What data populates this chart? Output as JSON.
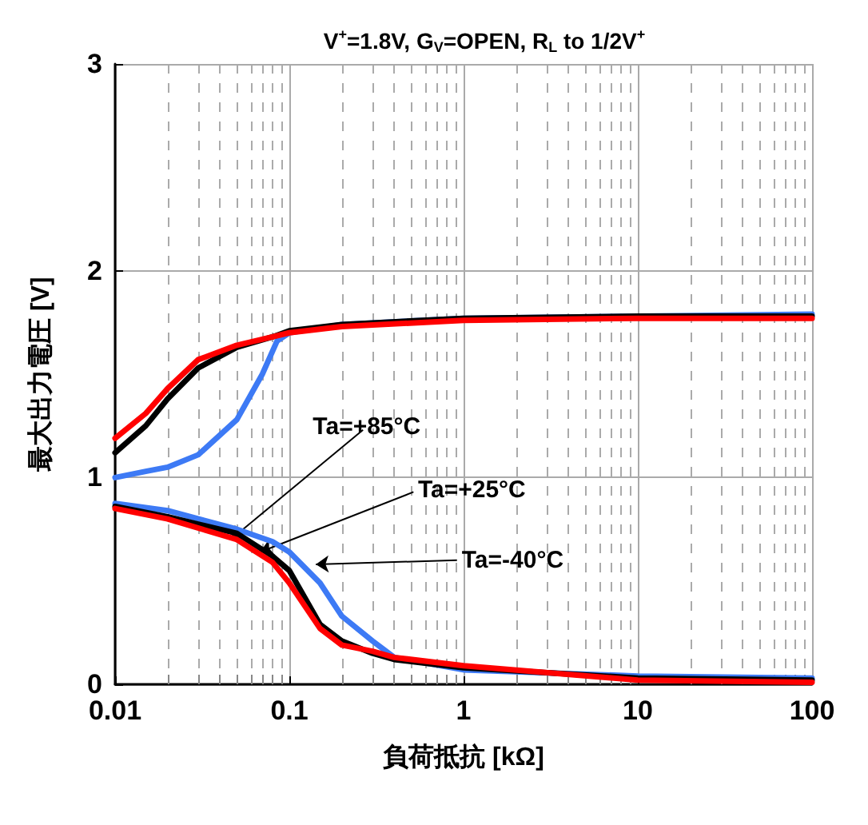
{
  "chart_data": {
    "type": "line",
    "title": "V$^{+}$=1.8V, G$_{V}$=OPEN, R$_{L}$ to 1/2V$^{+}$",
    "xlabel": "負荷抵抗 [kΩ]",
    "ylabel": "最大出力電圧 [V]",
    "log": "x",
    "grid": true,
    "marker": "none",
    "line_style": "solid",
    "xlim": [
      0.01,
      100
    ],
    "xticks": [
      0.01,
      0.1,
      1,
      10,
      100
    ],
    "ylim": [
      0,
      3
    ],
    "yticks": [
      0,
      1,
      2,
      3
    ],
    "annotations": [
      {
        "text": "Ta=+85°C",
        "x": 0.046,
        "y": 0.7
      },
      {
        "text": "Ta=+25°C",
        "x": 0.068,
        "y": 0.64
      },
      {
        "text": "Ta=-40°C",
        "x": 0.142,
        "y": 0.58
      }
    ],
    "series": [
      {
        "color": "#3d7af5",
        "x": [
          0.01,
          0.015,
          0.02,
          0.03,
          0.05,
          0.07,
          0.085,
          0.1,
          0.2,
          1,
          10,
          100
        ],
        "values": [
          1.0,
          1.03,
          1.05,
          1.11,
          1.28,
          1.5,
          1.66,
          1.7,
          1.74,
          1.77,
          1.78,
          1.79
        ]
      },
      {
        "color": "#000000",
        "x": [
          0.01,
          0.015,
          0.02,
          0.03,
          0.05,
          0.08,
          0.1,
          0.2,
          1,
          10,
          100
        ],
        "values": [
          1.12,
          1.25,
          1.38,
          1.53,
          1.63,
          1.68,
          1.71,
          1.74,
          1.77,
          1.78,
          1.78
        ]
      },
      {
        "color": "#ff0000",
        "x": [
          0.01,
          0.015,
          0.02,
          0.03,
          0.05,
          0.08,
          0.1,
          0.2,
          1,
          10,
          100
        ],
        "values": [
          1.19,
          1.31,
          1.43,
          1.57,
          1.64,
          1.68,
          1.7,
          1.73,
          1.76,
          1.77,
          1.77
        ]
      },
      {
        "color": "#3d7af5",
        "x": [
          0.01,
          0.02,
          0.05,
          0.08,
          0.1,
          0.15,
          0.2,
          0.3,
          0.4,
          1,
          10,
          100
        ],
        "values": [
          0.875,
          0.84,
          0.75,
          0.69,
          0.64,
          0.49,
          0.33,
          0.21,
          0.13,
          0.07,
          0.04,
          0.03
        ]
      },
      {
        "color": "#000000",
        "x": [
          0.01,
          0.02,
          0.05,
          0.08,
          0.1,
          0.15,
          0.2,
          0.3,
          0.4,
          1,
          10,
          100
        ],
        "values": [
          0.86,
          0.81,
          0.73,
          0.62,
          0.55,
          0.29,
          0.21,
          0.15,
          0.12,
          0.08,
          0.03,
          0.02
        ]
      },
      {
        "color": "#ff0000",
        "x": [
          0.01,
          0.02,
          0.05,
          0.08,
          0.1,
          0.15,
          0.2,
          0.3,
          0.4,
          1,
          10,
          100
        ],
        "values": [
          0.85,
          0.8,
          0.7,
          0.59,
          0.49,
          0.27,
          0.19,
          0.16,
          0.13,
          0.09,
          0.02,
          0.01
        ]
      }
    ]
  }
}
